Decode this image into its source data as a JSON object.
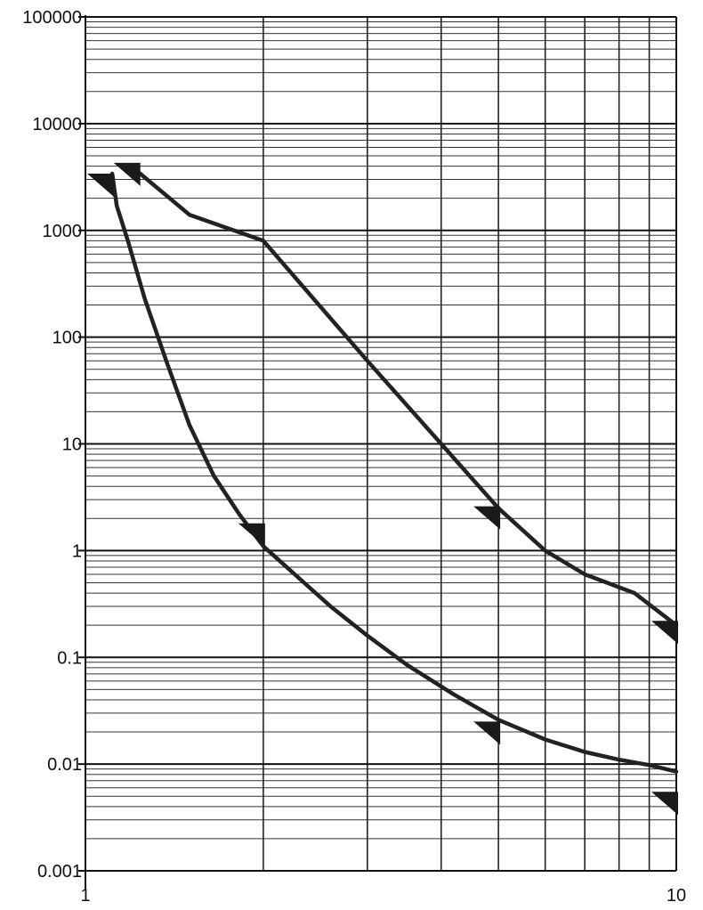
{
  "chart_data": {
    "type": "line",
    "title": "",
    "xlabel": "",
    "ylabel": "",
    "x_scale": "log",
    "y_scale": "log",
    "xlim": [
      1,
      10
    ],
    "ylim": [
      0.001,
      100000
    ],
    "grid": true,
    "x_tick_labels": [
      {
        "value": 1,
        "label": "1"
      },
      {
        "value": 10,
        "label": "10"
      }
    ],
    "y_tick_labels": [
      {
        "value": 100000,
        "label": "100000"
      },
      {
        "value": 10000,
        "label": "10000"
      },
      {
        "value": 1000,
        "label": "1000"
      },
      {
        "value": 100,
        "label": "100"
      },
      {
        "value": 10,
        "label": "10"
      },
      {
        "value": 1,
        "label": "1"
      },
      {
        "value": 0.1,
        "label": "0.1"
      },
      {
        "value": 0.01,
        "label": "0.01"
      },
      {
        "value": 0.001,
        "label": "0.001"
      }
    ],
    "series": [
      {
        "color": "#222222",
        "points": [
          [
            1.11,
            3400
          ],
          [
            1.13,
            1700
          ],
          [
            1.18,
            800
          ],
          [
            1.26,
            230
          ],
          [
            1.37,
            60
          ],
          [
            1.5,
            15
          ],
          [
            1.65,
            5
          ],
          [
            1.82,
            2.2
          ],
          [
            2.0,
            1.1
          ],
          [
            2.3,
            0.55
          ],
          [
            2.6,
            0.3
          ],
          [
            3.0,
            0.16
          ],
          [
            3.5,
            0.085
          ],
          [
            4.2,
            0.045
          ],
          [
            5.0,
            0.026
          ],
          [
            6.0,
            0.017
          ],
          [
            7.0,
            0.013
          ],
          [
            8.0,
            0.011
          ],
          [
            9.0,
            0.0098
          ],
          [
            10.0,
            0.0085
          ]
        ],
        "arrows": [
          [
            1.11,
            3400
          ],
          [
            2.0,
            1.8
          ],
          [
            5.0,
            0.025
          ],
          [
            10.0,
            0.0055
          ]
        ]
      },
      {
        "color": "#222222",
        "points": [
          [
            1.23,
            3500
          ],
          [
            1.5,
            1400
          ],
          [
            2.0,
            800
          ],
          [
            3.0,
            60
          ],
          [
            4.0,
            10
          ],
          [
            5.0,
            2.5
          ],
          [
            6.0,
            1.0
          ],
          [
            7.0,
            0.6
          ],
          [
            8.5,
            0.4
          ],
          [
            10.0,
            0.2
          ]
        ],
        "arrows": [
          [
            1.23,
            4300
          ],
          [
            5.0,
            2.6
          ],
          [
            10.0,
            0.22
          ]
        ]
      }
    ]
  }
}
